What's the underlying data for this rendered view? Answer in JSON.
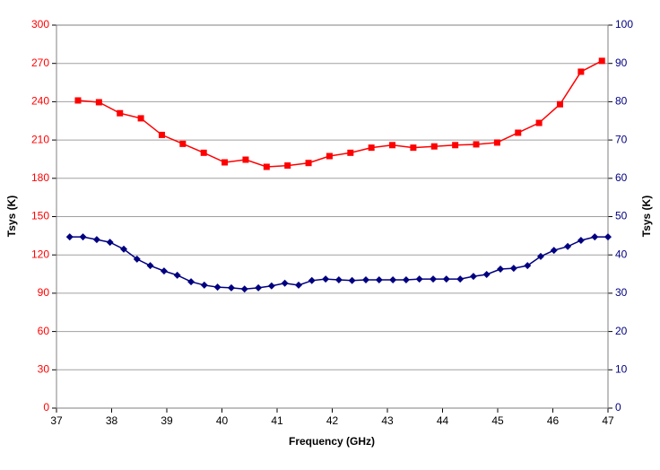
{
  "chart_data": {
    "type": "line",
    "xlabel": "Frequency (GHz)",
    "ylabel": "Tsys (K)",
    "y2label": "Tsys (K)",
    "xlim": [
      37,
      47
    ],
    "xticks": [
      37,
      38,
      39,
      40,
      41,
      42,
      43,
      44,
      45,
      46,
      47
    ],
    "ylim": [
      0,
      300
    ],
    "yticks": [
      0,
      30,
      60,
      90,
      120,
      150,
      180,
      210,
      240,
      270,
      300
    ],
    "y2lim": [
      0,
      100
    ],
    "y2ticks": [
      0,
      10,
      20,
      30,
      40,
      50,
      60,
      70,
      80,
      90,
      100
    ],
    "grid": true,
    "series": [
      {
        "color": "#ff0000",
        "marker": "square",
        "axis": "y",
        "x": [
          37.39,
          37.77,
          38.15,
          38.53,
          38.91,
          39.29,
          39.67,
          40.05,
          40.43,
          40.81,
          41.19,
          41.57,
          41.95,
          42.33,
          42.71,
          43.09,
          43.47,
          43.85,
          44.23,
          44.61,
          44.99,
          45.37,
          45.75,
          46.13,
          46.51,
          46.89
        ],
        "values": [
          241,
          239.6,
          231,
          227,
          214,
          207,
          200,
          192.5,
          194.6,
          189,
          190,
          192,
          197.4,
          200,
          204,
          206,
          204,
          205,
          206,
          206.6,
          208,
          215.7,
          223.4,
          238,
          263.5,
          272
        ]
      },
      {
        "color": "#000080",
        "marker": "diamond",
        "axis": "y2",
        "x": [
          37.24,
          37.48,
          37.73,
          37.97,
          38.22,
          38.46,
          38.7,
          38.95,
          39.19,
          39.44,
          39.68,
          39.92,
          40.17,
          40.41,
          40.66,
          40.9,
          41.14,
          41.39,
          41.63,
          41.88,
          42.12,
          42.36,
          42.61,
          42.85,
          43.1,
          43.34,
          43.58,
          43.83,
          44.07,
          44.32,
          44.56,
          44.8,
          45.05,
          45.29,
          45.54,
          45.78,
          46.02,
          46.27,
          46.51,
          46.76,
          47
        ],
        "values": [
          44.7,
          44.7,
          44,
          43.3,
          41.5,
          38.9,
          37.2,
          35.8,
          34.7,
          33,
          32.1,
          31.6,
          31.4,
          31.1,
          31.4,
          31.9,
          32.6,
          32.1,
          33.3,
          33.7,
          33.5,
          33.3,
          33.5,
          33.5,
          33.5,
          33.5,
          33.7,
          33.7,
          33.7,
          33.7,
          34.4,
          34.9,
          36.3,
          36.5,
          37.2,
          39.6,
          41.2,
          42.2,
          43.8,
          44.7,
          44.7
        ]
      }
    ]
  }
}
